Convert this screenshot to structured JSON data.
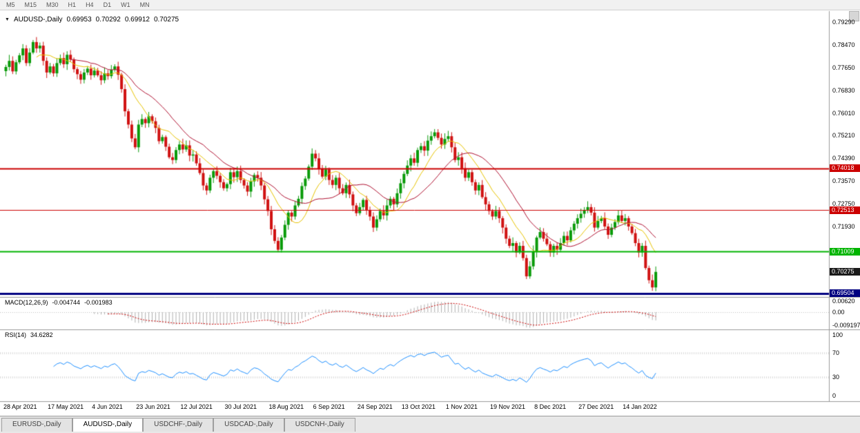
{
  "toolbar": {
    "timeframes": [
      "M5",
      "M15",
      "M30",
      "H1",
      "H4",
      "D1",
      "W1",
      "MN"
    ]
  },
  "chart_header": {
    "dropdown_icon": "▼",
    "symbol": "AUDUSD-,Daily",
    "open": "0.69953",
    "high": "0.70292",
    "low": "0.69912",
    "close": "0.70275"
  },
  "price_axis": {
    "ticks": [
      "0.79290",
      "0.78470",
      "0.77650",
      "0.76830",
      "0.76010",
      "0.75210",
      "0.74390",
      "0.73570",
      "0.72750",
      "0.71930"
    ]
  },
  "price_lines": [
    {
      "value": 0.74018,
      "label": "0.74018",
      "color": "#cc0000",
      "width": 2
    },
    {
      "value": 0.72513,
      "label": "0.72513",
      "color": "#cc0000",
      "width": 1
    },
    {
      "value": 0.71009,
      "label": "0.71009",
      "color": "#00b400",
      "width": 2
    },
    {
      "value": 0.69504,
      "label": "0.69504",
      "color": "#000080",
      "width": 3
    }
  ],
  "current_price": {
    "value": 0.70275,
    "label": "0.70275",
    "bg": "#1a1a1a",
    "fg": "#ffffff"
  },
  "macd_panel": {
    "label": "MACD(12,26,9)",
    "value_main": "-0.004744",
    "value_signal": "-0.001983",
    "axis_ticks": [
      "0.00620",
      "0.00",
      "-0.009197"
    ],
    "axis_values": [
      0.0062,
      0,
      -0.009197
    ]
  },
  "rsi_panel": {
    "label": "RSI(14)",
    "value": "34.6282",
    "axis_ticks": [
      "100",
      "70",
      "30",
      "0"
    ],
    "axis_values": [
      100,
      70,
      30,
      0
    ],
    "levels": [
      70,
      30
    ]
  },
  "date_axis": [
    "28 Apr 2021",
    "17 May 2021",
    "4 Jun 2021",
    "23 Jun 2021",
    "12 Jul 2021",
    "30 Jul 2021",
    "18 Aug 2021",
    "6 Sep 2021",
    "24 Sep 2021",
    "13 Oct 2021",
    "1 Nov 2021",
    "19 Nov 2021",
    "8 Dec 2021",
    "27 Dec 2021",
    "14 Jan 2022"
  ],
  "tabs": [
    {
      "label": "EURUSD-,Daily",
      "active": false
    },
    {
      "label": "AUDUSD-,Daily",
      "active": true
    },
    {
      "label": "USDCHF-,Daily",
      "active": false
    },
    {
      "label": "USDCAD-,Daily",
      "active": false
    },
    {
      "label": "USDCNH-,Daily",
      "active": false
    }
  ],
  "chart_data": {
    "type": "candlestick",
    "symbol": "AUDUSD",
    "timeframe": "Daily",
    "title": "AUDUSD-,Daily",
    "ohlc_display": {
      "open": 0.69953,
      "high": 0.70292,
      "low": 0.69912,
      "close": 0.70275
    },
    "y_range": [
      0.695,
      0.7945
    ],
    "y_ticks": [
      0.7929,
      0.7847,
      0.7765,
      0.7683,
      0.7601,
      0.7521,
      0.7439,
      0.7357,
      0.7275,
      0.7193
    ],
    "x_labels": [
      "28 Apr 2021",
      "17 May 2021",
      "4 Jun 2021",
      "23 Jun 2021",
      "12 Jul 2021",
      "30 Jul 2021",
      "18 Aug 2021",
      "6 Sep 2021",
      "24 Sep 2021",
      "13 Oct 2021",
      "1 Nov 2021",
      "19 Nov 2021",
      "8 Dec 2021",
      "27 Dec 2021",
      "14 Jan 2022"
    ],
    "label_interval": 13,
    "closes": [
      0.7768,
      0.779,
      0.7752,
      0.7785,
      0.781,
      0.7835,
      0.7782,
      0.782,
      0.7858,
      0.7835,
      0.7845,
      0.779,
      0.7748,
      0.777,
      0.7745,
      0.7782,
      0.78,
      0.7778,
      0.7812,
      0.7795,
      0.776,
      0.7742,
      0.7722,
      0.7748,
      0.7762,
      0.7738,
      0.7755,
      0.7738,
      0.772,
      0.7745,
      0.7735,
      0.7758,
      0.777,
      0.774,
      0.7688,
      0.7608,
      0.756,
      0.751,
      0.7478,
      0.756,
      0.758,
      0.7565,
      0.759,
      0.7572,
      0.7548,
      0.75,
      0.7515,
      0.748,
      0.7442,
      0.7432,
      0.7468,
      0.7488,
      0.747,
      0.7485,
      0.7448,
      0.7452,
      0.742,
      0.7385,
      0.734,
      0.7322,
      0.7368,
      0.7392,
      0.7375,
      0.7352,
      0.733,
      0.7345,
      0.7388,
      0.737,
      0.7392,
      0.736,
      0.734,
      0.7318,
      0.7355,
      0.7378,
      0.7368,
      0.734,
      0.729,
      0.7248,
      0.7182,
      0.714,
      0.7108,
      0.7152,
      0.7198,
      0.7242,
      0.7228,
      0.7268,
      0.7292,
      0.7338,
      0.7365,
      0.7408,
      0.7455,
      0.7438,
      0.74,
      0.7372,
      0.7398,
      0.736,
      0.7342,
      0.7368,
      0.733,
      0.7312,
      0.7342,
      0.7308,
      0.7268,
      0.724,
      0.7262,
      0.7288,
      0.7252,
      0.7228,
      0.7188,
      0.7218,
      0.7248,
      0.7232,
      0.7268,
      0.7292,
      0.7272,
      0.7312,
      0.7348,
      0.7382,
      0.7412,
      0.7438,
      0.7422,
      0.7468,
      0.7482,
      0.7466,
      0.7502,
      0.7518,
      0.7532,
      0.7512,
      0.7488,
      0.7508,
      0.7518,
      0.7478,
      0.7432,
      0.7442,
      0.7402,
      0.7368,
      0.7388,
      0.7352,
      0.7322,
      0.7342,
      0.7298,
      0.7272,
      0.7248,
      0.7228,
      0.7248,
      0.7222,
      0.7188,
      0.7148,
      0.7122,
      0.7132,
      0.7098,
      0.7122,
      0.7078,
      0.7012,
      0.7048,
      0.7102,
      0.7152,
      0.7172,
      0.7148,
      0.7128,
      0.7098,
      0.7122,
      0.7108,
      0.7132,
      0.7158,
      0.7142,
      0.7178,
      0.7202,
      0.7222,
      0.7238,
      0.7252,
      0.7262,
      0.7242,
      0.7188,
      0.7212,
      0.7222,
      0.7192,
      0.7162,
      0.7188,
      0.7208,
      0.7232,
      0.7212,
      0.7222,
      0.7192,
      0.7168,
      0.7132,
      0.7098,
      0.7122,
      0.7042,
      0.6998,
      0.6972,
      0.7028
    ],
    "moving_averages": [
      {
        "type": "SMA",
        "period": 10,
        "color": "#e8c400"
      },
      {
        "type": "SMA",
        "period": 20,
        "color": "#b01030"
      }
    ],
    "horizontal_lines": [
      0.74018,
      0.72513,
      0.71009,
      0.69504
    ],
    "macd": {
      "fast": 12,
      "slow": 26,
      "signal": 9,
      "current_main": -0.004744,
      "current_signal": -0.001983,
      "axis_max": 0.0062,
      "axis_min": -0.009197
    },
    "rsi": {
      "period": 14,
      "current": 34.6282,
      "axis_min": 0,
      "axis_max": 100,
      "levels": [
        70,
        30
      ]
    },
    "colors": {
      "up": "#0a9b0a",
      "down": "#d01212",
      "ma_fast": "#e8c400",
      "ma_slow": "#b01030",
      "macd_histogram": "#b0b0b0",
      "macd_signal": "#cc0000",
      "rsi_line": "#1e90ff",
      "resistance": "#cc0000",
      "support_green": "#00b400",
      "support_navy": "#000080"
    }
  }
}
